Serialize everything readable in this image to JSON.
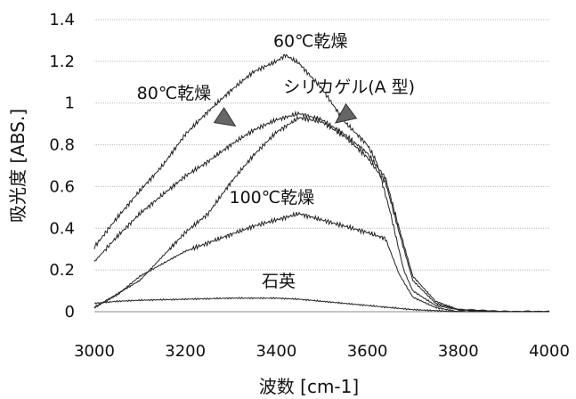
{
  "chart_data": {
    "type": "line",
    "xlabel": "波数 [cm-1]",
    "ylabel": "吸光度 [ABS.]",
    "xlim": [
      3000,
      4000
    ],
    "ylim": [
      0,
      1.4
    ],
    "xticks": [
      "3000",
      "3200",
      "3400",
      "3600",
      "3800",
      "4000"
    ],
    "yticks": [
      "0",
      "0.2",
      "0.4",
      "0.6",
      "0.8",
      "1",
      "1.2",
      "1.4"
    ],
    "grid": "horizontal",
    "series": [
      {
        "name": "60℃乾燥",
        "x": [
          3000,
          3050,
          3100,
          3150,
          3200,
          3250,
          3300,
          3350,
          3400,
          3420,
          3450,
          3500,
          3550,
          3600,
          3620,
          3650,
          3680,
          3700,
          3750,
          3800,
          3900,
          4000
        ],
        "y": [
          0.31,
          0.45,
          0.58,
          0.7,
          0.85,
          0.96,
          1.06,
          1.15,
          1.2,
          1.23,
          1.19,
          1.07,
          0.91,
          0.8,
          0.72,
          0.48,
          0.2,
          0.1,
          0.03,
          0.01,
          0.0,
          0.0
        ]
      },
      {
        "name": "80℃乾燥",
        "x": [
          3000,
          3050,
          3100,
          3150,
          3200,
          3250,
          3300,
          3350,
          3400,
          3450,
          3500,
          3550,
          3600,
          3640,
          3670,
          3700,
          3750,
          3800,
          3900,
          4000
        ],
        "y": [
          0.24,
          0.36,
          0.47,
          0.56,
          0.65,
          0.72,
          0.8,
          0.87,
          0.92,
          0.95,
          0.92,
          0.85,
          0.76,
          0.64,
          0.4,
          0.17,
          0.05,
          0.01,
          0.0,
          0.0
        ]
      },
      {
        "name": "シリカゲル(A 型)",
        "x": [
          3000,
          3100,
          3200,
          3250,
          3300,
          3350,
          3400,
          3450,
          3500,
          3550,
          3600,
          3640,
          3670,
          3700,
          3750,
          3800,
          3900,
          4000
        ],
        "y": [
          0.02,
          0.15,
          0.38,
          0.47,
          0.62,
          0.75,
          0.86,
          0.93,
          0.91,
          0.84,
          0.74,
          0.62,
          0.38,
          0.15,
          0.04,
          0.01,
          0.0,
          0.0
        ]
      },
      {
        "name": "100℃乾燥",
        "x": [
          3000,
          3050,
          3100,
          3150,
          3200,
          3250,
          3300,
          3350,
          3400,
          3450,
          3500,
          3550,
          3600,
          3640,
          3670,
          3700,
          3750,
          3800,
          3900,
          4000
        ],
        "y": [
          0.02,
          0.08,
          0.17,
          0.23,
          0.29,
          0.33,
          0.37,
          0.41,
          0.44,
          0.47,
          0.44,
          0.41,
          0.38,
          0.35,
          0.18,
          0.07,
          0.02,
          0.0,
          0.0,
          0.0
        ]
      },
      {
        "name": "石英",
        "x": [
          3000,
          3050,
          3100,
          3200,
          3300,
          3400,
          3450,
          3500,
          3550,
          3600,
          3650,
          3700,
          3750,
          3800,
          4000
        ],
        "y": [
          0.04,
          0.05,
          0.055,
          0.06,
          0.065,
          0.065,
          0.06,
          0.05,
          0.04,
          0.03,
          0.02,
          0.01,
          0.005,
          0.0,
          0.0
        ]
      }
    ],
    "annotations": [
      {
        "text": "60℃乾燥",
        "x": 3475,
        "y": 1.27
      },
      {
        "text": "80℃乾燥",
        "x": 3175,
        "y": 1.02
      },
      {
        "text": "シリカゲル(A 型)",
        "x": 3560,
        "y": 1.05
      },
      {
        "text": "100℃乾燥",
        "x": 3390,
        "y": 0.52
      },
      {
        "text": "石英",
        "x": 3405,
        "y": 0.12
      }
    ],
    "arrows": [
      {
        "from": [
          3265,
          0.955
        ],
        "to": [
          3310,
          0.89
        ]
      },
      {
        "from": [
          3570,
          0.97
        ],
        "to": [
          3530,
          0.905
        ]
      }
    ]
  }
}
